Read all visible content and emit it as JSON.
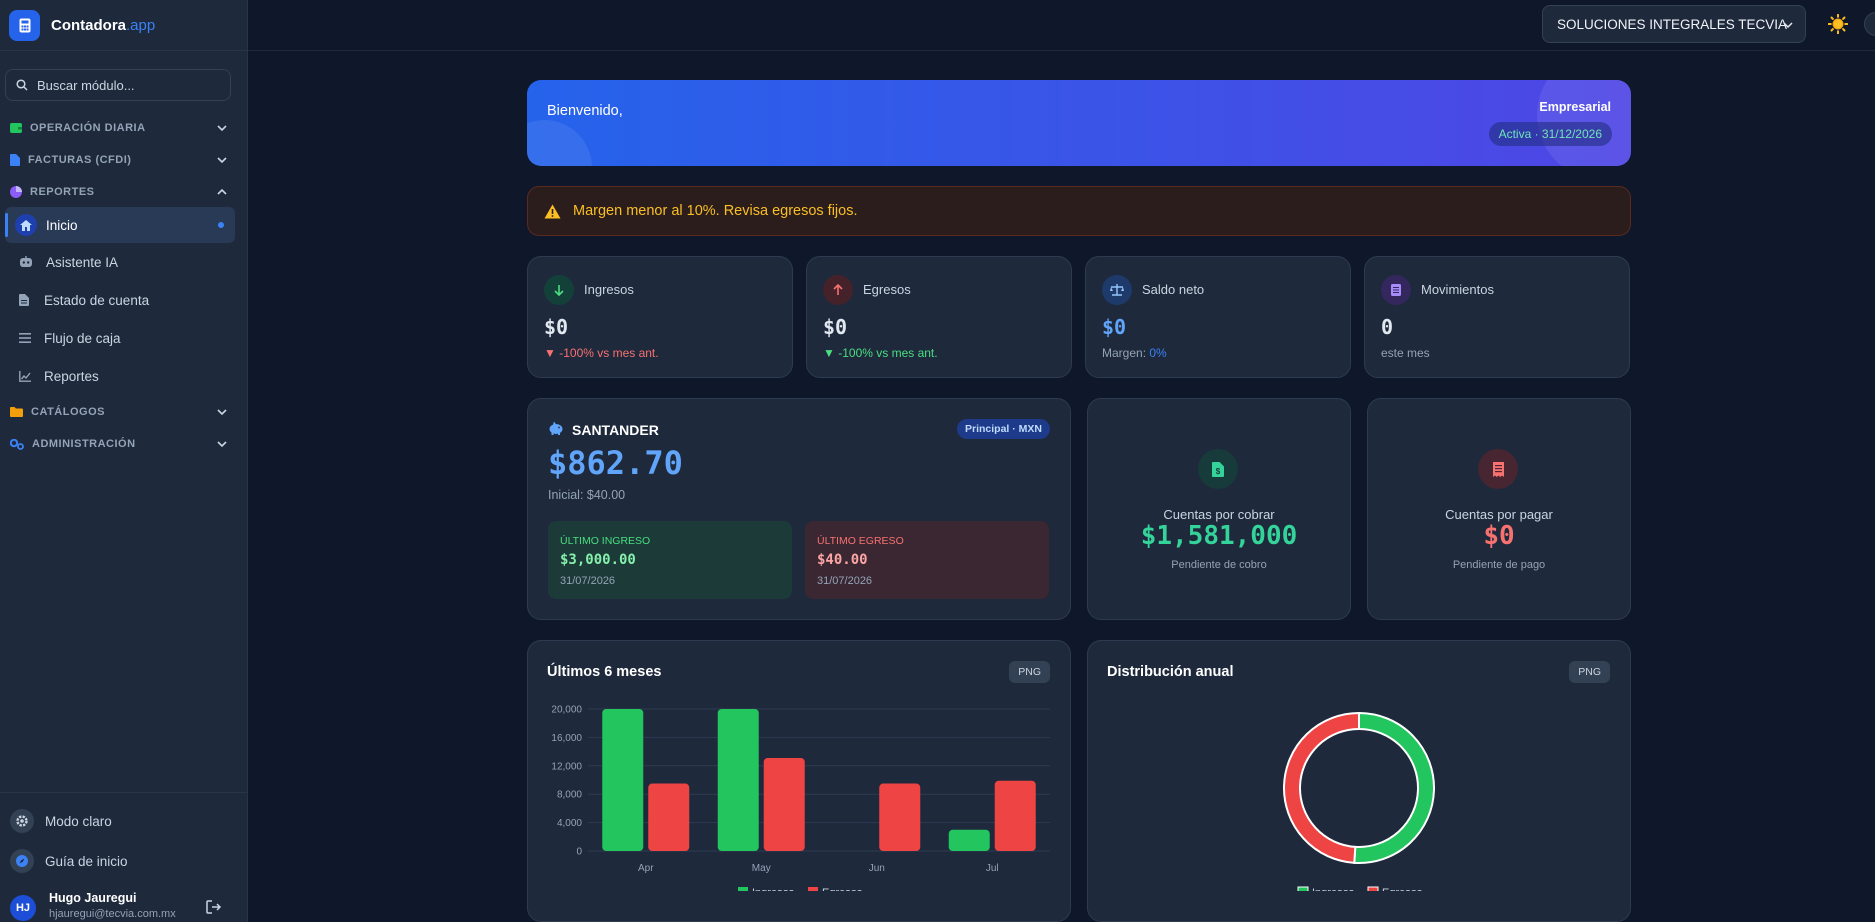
{
  "brand": {
    "name": "Contadora",
    "suffix": ".app"
  },
  "search": {
    "placeholder": "Buscar módulo..."
  },
  "sidebar": {
    "sections": [
      {
        "label": "OPERACIÓN DIARIA",
        "icon": "wallet-icon"
      },
      {
        "label": "FACTURAS (CFDI)",
        "icon": "file-icon"
      },
      {
        "label": "REPORTES",
        "icon": "pie-chart-icon"
      },
      {
        "label": "CATÁLOGOS",
        "icon": "folder-icon"
      },
      {
        "label": "ADMINISTRACIÓN",
        "icon": "cogs-icon"
      }
    ],
    "items": [
      {
        "label": "Inicio",
        "icon": "home-icon",
        "active": true
      },
      {
        "label": "Asistente IA",
        "icon": "robot-icon"
      },
      {
        "label": "Estado de cuenta",
        "icon": "document-icon"
      },
      {
        "label": "Flujo de caja",
        "icon": "list-icon"
      },
      {
        "label": "Reportes",
        "icon": "line-chart-icon"
      }
    ],
    "bottom": {
      "light_mode": "Modo claro",
      "guide": "Guía de inicio"
    },
    "user": {
      "initials": "HJ",
      "name": "Hugo Jauregui",
      "email": "hjauregui@tecvia.com.mx"
    }
  },
  "topbar": {
    "company": "SOLUCIONES INTEGRALES TECVIA"
  },
  "welcome": {
    "greeting": "Bienvenido,",
    "plan": "Empresarial",
    "status": "Activa · 31/12/2026"
  },
  "alert": {
    "text": "Margen menor al 10%. Revisa egresos fijos."
  },
  "stats": {
    "ingresos": {
      "label": "Ingresos",
      "value": "$0",
      "change": "-100% vs mes ant."
    },
    "egresos": {
      "label": "Egresos",
      "value": "$0",
      "change": "-100% vs mes ant."
    },
    "saldo": {
      "label": "Saldo neto",
      "value": "$0",
      "margin_label": "Margen:",
      "margin": "0%"
    },
    "movs": {
      "label": "Movimientos",
      "value": "0",
      "sub": "este mes"
    }
  },
  "bank": {
    "name": "SANTANDER",
    "badge": "Principal · MXN",
    "balance": "$862.70",
    "initial": "Inicial: $40.00",
    "last_in": {
      "label": "ÚLTIMO INGRESO",
      "amount": "$3,000.00",
      "date": "31/07/2026"
    },
    "last_out": {
      "label": "ÚLTIMO EGRESO",
      "amount": "$40.00",
      "date": "31/07/2026"
    }
  },
  "receivable": {
    "title": "Cuentas por cobrar",
    "value": "$1,581,000",
    "sub": "Pendiente de cobro"
  },
  "payable": {
    "title": "Cuentas por pagar",
    "value": "$0",
    "sub": "Pendiente de pago"
  },
  "bar_panel": {
    "title": "Últimos 6 meses",
    "export": "PNG"
  },
  "pie_panel": {
    "title": "Distribución anual",
    "export": "PNG"
  },
  "colors": {
    "ingresos": "#22c55e",
    "egresos": "#ef4444",
    "accent": "#3b82f6"
  },
  "chart_data": [
    {
      "type": "bar",
      "categories": [
        "Apr",
        "May",
        "Jun",
        "Jul"
      ],
      "series": [
        {
          "name": "Ingresos",
          "values": [
            20000,
            20000,
            0,
            3000
          ]
        },
        {
          "name": "Egresos",
          "values": [
            9500,
            13100,
            9500,
            9900
          ]
        }
      ],
      "yticks": [
        "20,000",
        "16,000",
        "12,000",
        "8,000",
        "4,000",
        "0"
      ],
      "ylim": [
        0,
        20000
      ],
      "legend": "bottom",
      "grid": true
    },
    {
      "type": "pie",
      "donut": true,
      "labels": [
        "Ingresos",
        "Egresos"
      ],
      "values": [
        51,
        49
      ],
      "legend": "bottom"
    }
  ]
}
